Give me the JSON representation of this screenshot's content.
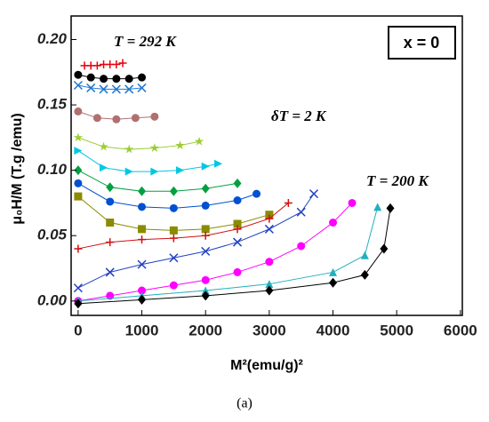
{
  "chart_data": {
    "type": "line",
    "xlabel": "M²(emu/g)²",
    "ylabel": "μ₀H/M (T.g /emu)",
    "caption": "(a)",
    "annotations": [
      "T = 292 K",
      "δT = 2 K",
      "T = 200 K"
    ],
    "boxed_label": "x = 0",
    "xlim": [
      -110,
      6030
    ],
    "ylim": [
      -0.011,
      0.218
    ],
    "xticks": [
      0,
      1000,
      2000,
      3000,
      4000,
      5000,
      6000
    ],
    "yticks": [
      {
        "value": 0,
        "label": "0.00"
      },
      {
        "value": 0.05,
        "label": "0.05"
      },
      {
        "value": 0.1,
        "label": "0.10"
      },
      {
        "value": 0.15,
        "label": "0.15"
      },
      {
        "value": 0.2,
        "label": "0.20"
      }
    ],
    "series": [
      {
        "color": "#e8000b",
        "marker": "plus",
        "x": [
          100,
          200,
          300,
          400,
          500,
          600,
          700
        ],
        "values": [
          0.18,
          0.18,
          0.18,
          0.181,
          0.181,
          0.181,
          0.182
        ]
      },
      {
        "color": "#000000",
        "marker": "circle",
        "x": [
          0,
          200,
          400,
          600,
          800,
          1000
        ],
        "values": [
          0.173,
          0.171,
          0.17,
          0.17,
          0.17,
          0.171
        ]
      },
      {
        "color": "#1f77d0",
        "marker": "x",
        "x": [
          0,
          200,
          400,
          600,
          800,
          1000
        ],
        "values": [
          0.165,
          0.163,
          0.162,
          0.162,
          0.162,
          0.163
        ]
      },
      {
        "color": "#b07070",
        "marker": "circle",
        "x": [
          0,
          300,
          600,
          900,
          1200
        ],
        "values": [
          0.145,
          0.14,
          0.139,
          0.14,
          0.141
        ]
      },
      {
        "color": "#9acd32",
        "marker": "star",
        "x": [
          0,
          400,
          800,
          1200,
          1600,
          1900
        ],
        "values": [
          0.125,
          0.118,
          0.116,
          0.117,
          0.119,
          0.122
        ]
      },
      {
        "color": "#00c8e0",
        "marker": "triright",
        "x": [
          0,
          400,
          800,
          1200,
          1600,
          2000,
          2200
        ],
        "values": [
          0.115,
          0.102,
          0.099,
          0.099,
          0.1,
          0.103,
          0.105
        ]
      },
      {
        "color": "#00a040",
        "marker": "diamond",
        "x": [
          0,
          500,
          1000,
          1500,
          2000,
          2500
        ],
        "values": [
          0.1,
          0.087,
          0.084,
          0.084,
          0.086,
          0.09
        ]
      },
      {
        "color": "#0050d0",
        "marker": "circle",
        "x": [
          0,
          500,
          1000,
          1500,
          2000,
          2500,
          2800
        ],
        "values": [
          0.09,
          0.076,
          0.072,
          0.071,
          0.073,
          0.077,
          0.082
        ]
      },
      {
        "color": "#8b8b00",
        "marker": "square",
        "x": [
          0,
          500,
          1000,
          1500,
          2000,
          2500,
          3000
        ],
        "values": [
          0.08,
          0.06,
          0.055,
          0.054,
          0.055,
          0.059,
          0.066
        ]
      },
      {
        "color": "#d01010",
        "marker": "plus",
        "x": [
          0,
          500,
          1000,
          1500,
          2000,
          2500,
          3000,
          3300
        ],
        "values": [
          0.04,
          0.045,
          0.047,
          0.048,
          0.05,
          0.055,
          0.063,
          0.075
        ]
      },
      {
        "color": "#2040c0",
        "marker": "x",
        "x": [
          0,
          500,
          1000,
          1500,
          2000,
          2500,
          3000,
          3500,
          3700
        ],
        "values": [
          0.01,
          0.022,
          0.028,
          0.033,
          0.038,
          0.045,
          0.055,
          0.068,
          0.082
        ]
      },
      {
        "color": "#ff00ff",
        "marker": "circle",
        "x": [
          0,
          500,
          1000,
          1500,
          2000,
          2500,
          3000,
          3500,
          4000,
          4300
        ],
        "values": [
          0,
          0.004,
          0.008,
          0.012,
          0.016,
          0.022,
          0.03,
          0.042,
          0.06,
          0.075
        ]
      },
      {
        "color": "#20b0c0",
        "marker": "triup",
        "x": [
          0,
          1000,
          2000,
          3000,
          4000,
          4500,
          4700
        ],
        "values": [
          0,
          0.004,
          0.008,
          0.013,
          0.022,
          0.035,
          0.072
        ]
      },
      {
        "color": "#000000",
        "marker": "diamond",
        "x": [
          0,
          1000,
          2000,
          3000,
          4000,
          4500,
          4800,
          4900
        ],
        "values": [
          -0.002,
          0.001,
          0.004,
          0.008,
          0.014,
          0.02,
          0.04,
          0.071
        ]
      }
    ]
  }
}
